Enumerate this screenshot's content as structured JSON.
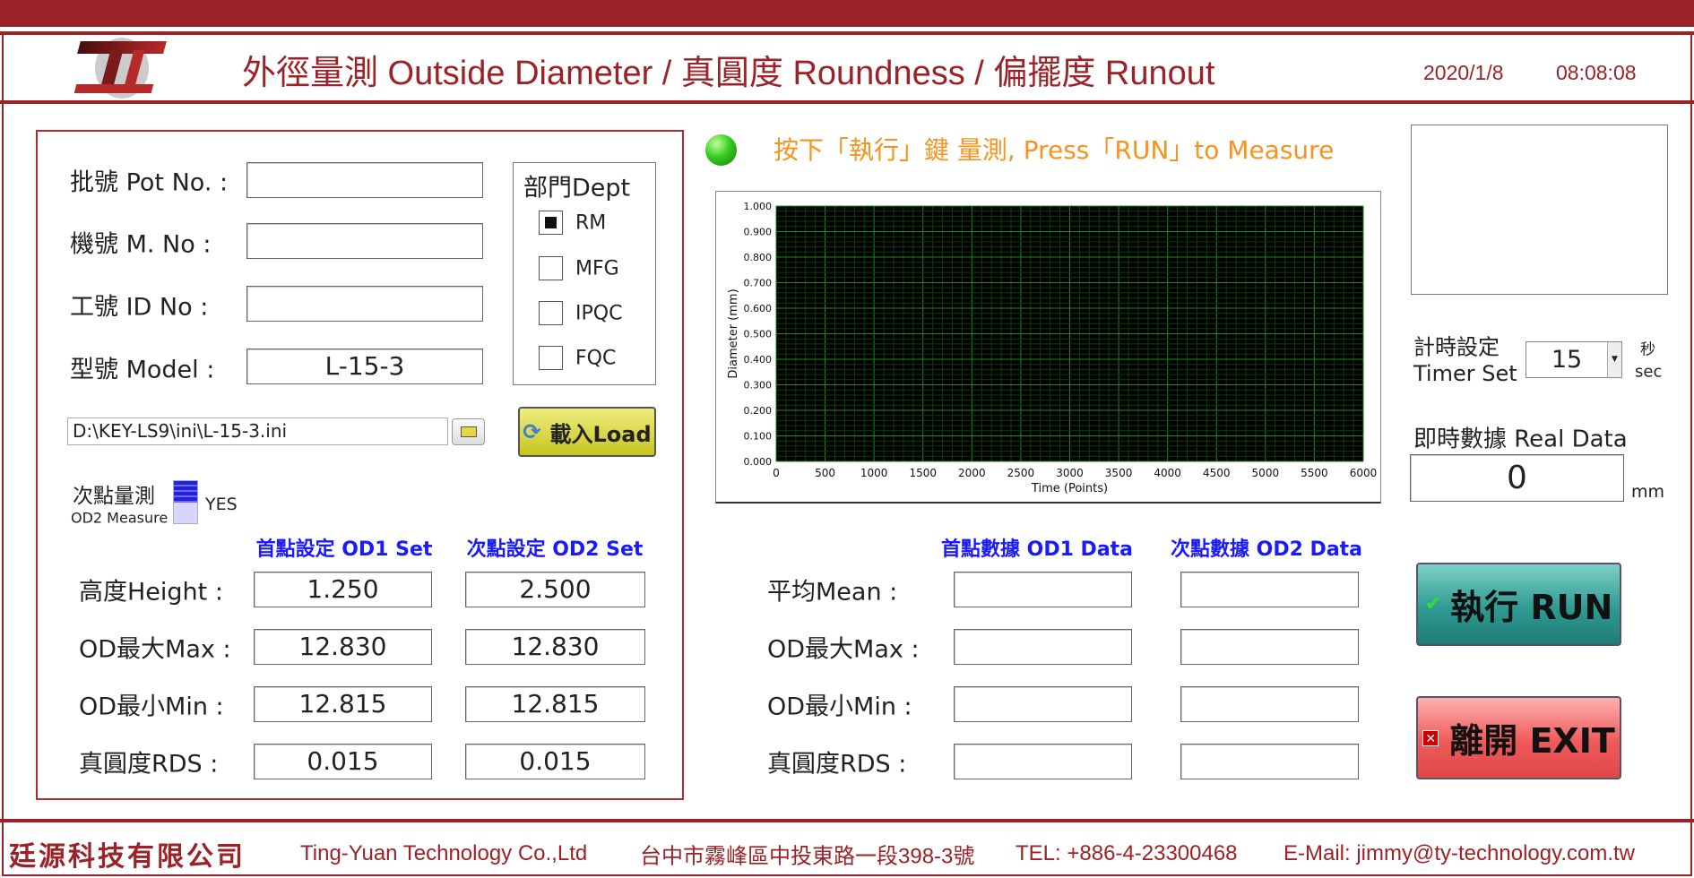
{
  "header": {
    "title": "外徑量測 Outside Diameter / 真圓度 Roundness / 偏擺度 Runout",
    "date": "2020/1/8",
    "time": "08:08:08",
    "logo_text": "TY"
  },
  "form": {
    "pot_label": "批號 Pot No. :",
    "pot_value": "",
    "machine_label": "機號 M. No :",
    "machine_value": "",
    "id_label": "工號 ID No :",
    "id_value": "",
    "model_label": "型號 Model :",
    "model_value": "L-15-3",
    "file_path": "D:\\KEY-LS9\\ini\\L-15-3.ini",
    "load_label": "載入Load"
  },
  "dept": {
    "title": "部門Dept",
    "options": [
      {
        "label": "RM",
        "checked": true
      },
      {
        "label": "MFG",
        "checked": false
      },
      {
        "label": "IPQC",
        "checked": false
      },
      {
        "label": "FQC",
        "checked": false
      }
    ]
  },
  "od2_measure": {
    "label_zh": "次點量測",
    "label_en": "OD2 Measure",
    "state": "YES"
  },
  "settings": {
    "od1_header": "首點設定 OD1 Set",
    "od2_header": "次點設定 OD2 Set",
    "rows": [
      {
        "label": "高度Height :",
        "od1": "1.250",
        "od2": "2.500"
      },
      {
        "label": "OD最大Max :",
        "od1": "12.830",
        "od2": "12.830"
      },
      {
        "label": "OD最小Min :",
        "od1": "12.815",
        "od2": "12.815"
      },
      {
        "label": "真圓度RDS :",
        "od1": "0.015",
        "od2": "0.015"
      }
    ]
  },
  "status": {
    "instruction": "按下「執行」鍵 量測, Press「RUN」to Measure",
    "led_color": "#33cc22"
  },
  "chart_data": {
    "type": "line",
    "xlabel": "Time (Points)",
    "ylabel": "Diameter (mm)",
    "xlim": [
      0,
      6000
    ],
    "ylim": [
      0,
      1
    ],
    "xticks": [
      "0",
      "500",
      "1000",
      "1500",
      "2000",
      "2500",
      "3000",
      "3500",
      "4000",
      "4500",
      "5000",
      "5500",
      "6000"
    ],
    "yticks": [
      "0.000",
      "0.100",
      "0.200",
      "0.300",
      "0.400",
      "0.500",
      "0.600",
      "0.700",
      "0.800",
      "0.900",
      "1.000"
    ],
    "grid": true,
    "background": "#000000",
    "grid_color": "#1f8a1f",
    "series": []
  },
  "timer": {
    "label_zh": "計時設定",
    "label_en": "Timer Set",
    "value": "15",
    "unit_zh": "秒",
    "unit_en": "sec"
  },
  "realdata": {
    "label": "即時數據 Real Data",
    "value": "0",
    "unit": "mm"
  },
  "results": {
    "od1_header": "首點數據 OD1 Data",
    "od2_header": "次點數據 OD2 Data",
    "rows": [
      {
        "label": "平均Mean :",
        "od1": "",
        "od2": ""
      },
      {
        "label": "OD最大Max :",
        "od1": "",
        "od2": ""
      },
      {
        "label": "OD最小Min :",
        "od1": "",
        "od2": ""
      },
      {
        "label": "真圓度RDS :",
        "od1": "",
        "od2": ""
      }
    ]
  },
  "buttons": {
    "run": "執行 RUN",
    "exit": "離開 EXIT"
  },
  "footer": {
    "company_zh": "廷源科技有限公司",
    "company_en": "Ting-Yuan Technology Co.,Ltd",
    "address": "台中市霧峰區中投東路一段398-3號",
    "tel": "TEL: +886-4-23300468",
    "email": "E-Mail: jimmy@ty-technology.com.tw"
  }
}
